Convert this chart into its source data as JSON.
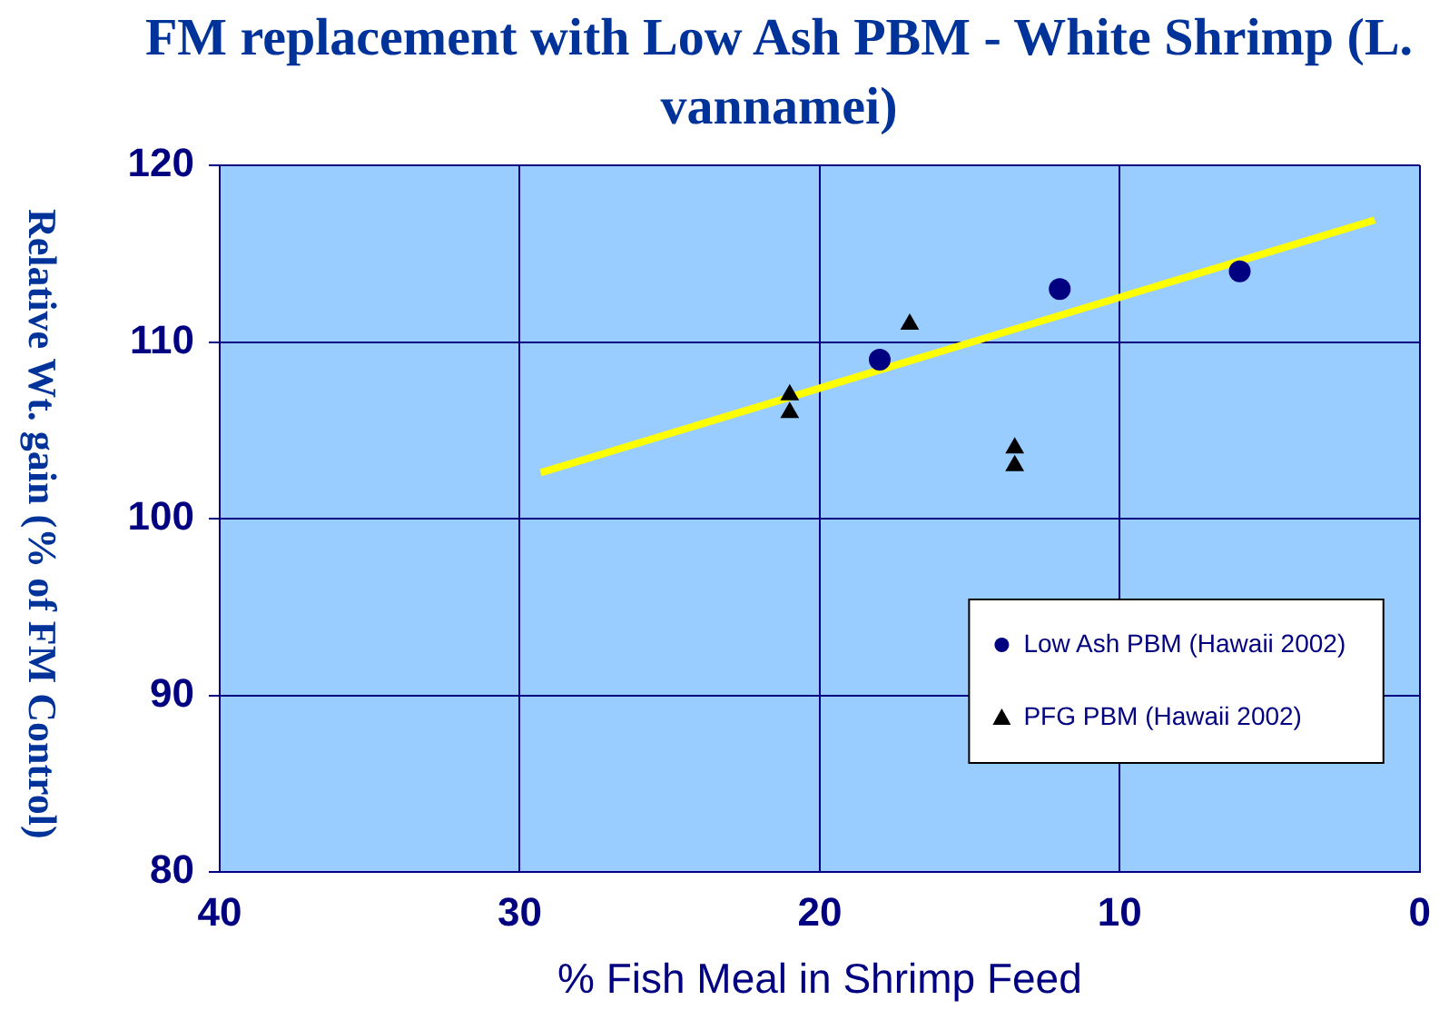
{
  "chart_data": {
    "type": "scatter",
    "title": "FM replacement with Low Ash PBM - White Shrimp (L. vannamei)",
    "xlabel": "% Fish Meal in Shrimp Feed",
    "ylabel": "Relative Wt. gain (% of FM Control)",
    "xlim": [
      40,
      0
    ],
    "xticks": [
      40,
      30,
      20,
      10,
      0
    ],
    "ylim": [
      80,
      120
    ],
    "yticks": [
      80,
      90,
      100,
      110,
      120
    ],
    "grid": true,
    "legend": "bottom right",
    "series": [
      {
        "name": "Low Ash PBM (Hawaii 2002)",
        "color": "#000080",
        "marker": "circle",
        "x": [
          18,
          12,
          6
        ],
        "values": [
          109,
          113,
          114
        ]
      },
      {
        "name": "PFG PBM (Hawaii 2002)",
        "color": "#000000",
        "marker": "triangle",
        "x": [
          21,
          21,
          17,
          13.5,
          13.5
        ],
        "values": [
          107,
          106,
          111,
          104,
          103
        ]
      },
      {
        "type": "line",
        "color": "#ffff00",
        "marker": "none",
        "x": [
          29.3,
          1.5
        ],
        "values": [
          102.6,
          116.9
        ]
      }
    ]
  }
}
